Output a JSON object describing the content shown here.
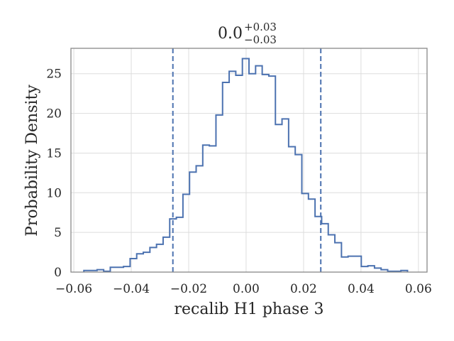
{
  "chart_data": {
    "type": "histogram",
    "title": {
      "main": "0.0",
      "sup": "+0.03",
      "sub": "−0.03"
    },
    "xlabel": "recalib H1 phase 3",
    "ylabel": "Probability Density",
    "xlim": [
      -0.061,
      0.063
    ],
    "ylim": [
      0,
      28.2
    ],
    "xticks": [
      -0.06,
      -0.04,
      -0.02,
      0.0,
      0.02,
      0.04,
      0.06
    ],
    "xtick_labels": [
      "−0.06",
      "−0.04",
      "−0.02",
      "0.00",
      "0.02",
      "0.04",
      "0.06"
    ],
    "yticks": [
      0,
      5,
      10,
      15,
      20,
      25
    ],
    "ytick_labels": [
      "0",
      "5",
      "10",
      "15",
      "20",
      "25"
    ],
    "grid": true,
    "bin_edges": [
      -0.0565,
      -0.0542,
      -0.0519,
      -0.0496,
      -0.0473,
      -0.045,
      -0.0427,
      -0.0404,
      -0.0381,
      -0.0358,
      -0.0335,
      -0.0312,
      -0.0289,
      -0.0266,
      -0.0243,
      -0.022,
      -0.0197,
      -0.0174,
      -0.0151,
      -0.0128,
      -0.0105,
      -0.0082,
      -0.0059,
      -0.0036,
      -0.0013,
      0.001,
      0.0033,
      0.0056,
      0.0079,
      0.0102,
      0.0125,
      0.0148,
      0.0171,
      0.0194,
      0.0217,
      0.024,
      0.0263,
      0.0286,
      0.0309,
      0.0332,
      0.0355,
      0.0378,
      0.0401,
      0.0424,
      0.0447,
      0.047,
      0.0493,
      0.0516,
      0.0539,
      0.0562
    ],
    "densities": [
      0.2,
      0.2,
      0.3,
      0.1,
      0.6,
      0.6,
      0.7,
      1.7,
      2.3,
      2.5,
      3.1,
      3.5,
      4.4,
      6.7,
      6.9,
      9.8,
      12.6,
      13.4,
      16.0,
      15.9,
      19.8,
      23.9,
      25.3,
      24.8,
      26.9,
      25.0,
      26.0,
      24.9,
      24.7,
      18.6,
      19.3,
      15.8,
      14.8,
      9.9,
      9.2,
      7.0,
      6.1,
      4.7,
      3.7,
      1.9,
      2.0,
      2.0,
      0.7,
      0.8,
      0.5,
      0.3,
      0.1,
      0.1,
      0.2
    ],
    "vlines": [
      -0.0255,
      0.026
    ],
    "colors": {
      "series": "#4c72b0",
      "grid": "#dddddd",
      "spine": "#888888",
      "text": "#262626",
      "background": "#ffffff"
    }
  }
}
